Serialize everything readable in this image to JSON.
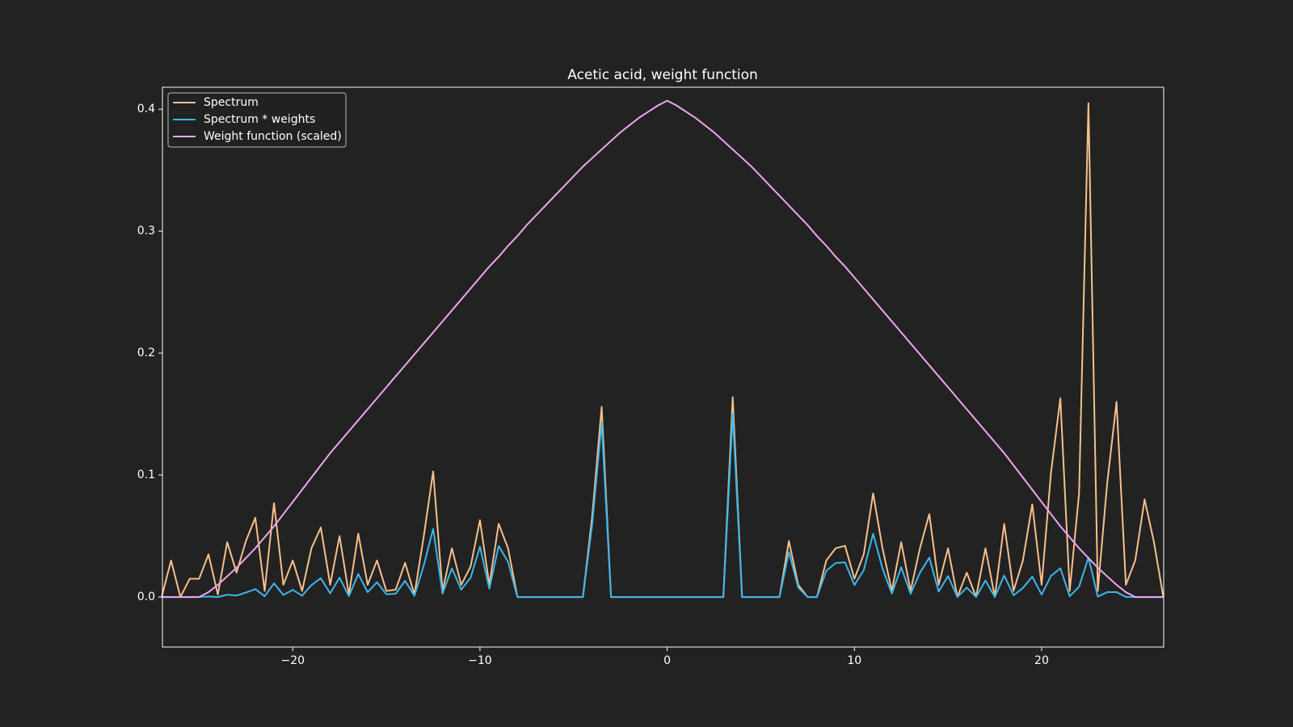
{
  "chart_data": {
    "type": "line",
    "title": "Acetic acid, weight function",
    "x": [
      -27,
      -26.5,
      -26,
      -25.5,
      -25,
      -24.5,
      -24,
      -23.5,
      -23,
      -22.5,
      -22,
      -21.5,
      -21,
      -20.5,
      -20,
      -19.5,
      -19,
      -18.5,
      -18,
      -17.5,
      -17,
      -16.5,
      -16,
      -15.5,
      -15,
      -14.5,
      -14,
      -13.5,
      -13,
      -12.5,
      -12,
      -11.5,
      -11,
      -10.5,
      -10,
      -9.5,
      -9,
      -8.5,
      -8,
      -7.5,
      -7,
      -6.5,
      -6,
      -5.5,
      -5,
      -4.5,
      -4,
      -3.5,
      -3,
      -2.5,
      -2,
      -1.5,
      -1,
      -0.5,
      0,
      0.5,
      1,
      1.5,
      2,
      2.5,
      3,
      3.5,
      4,
      4.5,
      5,
      5.5,
      6,
      6.5,
      7,
      7.5,
      8,
      8.5,
      9,
      9.5,
      10,
      10.5,
      11,
      11.5,
      12,
      12.5,
      13,
      13.5,
      14,
      14.5,
      15,
      15.5,
      16,
      16.5,
      17,
      17.5,
      18,
      18.5,
      19,
      19.5,
      20,
      20.5,
      21,
      21.5,
      22,
      22.5,
      23,
      23.5,
      24,
      24.5,
      25,
      25.5,
      26,
      26.5
    ],
    "series": [
      {
        "name": "Spectrum",
        "color": "#f7c08c",
        "values": [
          0,
          0.03,
          0,
          0.015,
          0.015,
          0.035,
          0.002,
          0.045,
          0.02,
          0.046,
          0.065,
          0.005,
          0.077,
          0.01,
          0.03,
          0.005,
          0.04,
          0.057,
          0.01,
          0.05,
          0.002,
          0.052,
          0.01,
          0.03,
          0.005,
          0.006,
          0.028,
          0.002,
          0.05,
          0.103,
          0.005,
          0.04,
          0.01,
          0.025,
          0.063,
          0.01,
          0.06,
          0.04,
          0,
          0,
          0,
          0,
          0,
          0,
          0,
          0,
          0.067,
          0.156,
          0,
          0,
          0,
          0,
          0,
          0,
          0,
          0,
          0,
          0,
          0,
          0,
          0,
          0.164,
          0,
          0,
          0,
          0,
          0,
          0.046,
          0.01,
          0,
          0,
          0.03,
          0.04,
          0.042,
          0.015,
          0.035,
          0.085,
          0.04,
          0.005,
          0.045,
          0.005,
          0.04,
          0.068,
          0.01,
          0.04,
          0,
          0.02,
          0,
          0.04,
          0,
          0.06,
          0.005,
          0.03,
          0.076,
          0.01,
          0.102,
          0.163,
          0.005,
          0.085,
          0.405,
          0.005,
          0.093,
          0.16,
          0.01,
          0.03,
          0.08,
          0.045,
          0
        ]
      },
      {
        "name": "Spectrum * weights",
        "color": "#3cb6ec",
        "values": [
          0,
          0,
          0,
          0,
          0,
          0.0004,
          0,
          0.0019,
          0.0012,
          0.0037,
          0.0065,
          0.0006,
          0.0112,
          0.0017,
          0.0059,
          0.0011,
          0.0098,
          0.0154,
          0.003,
          0.0159,
          0.0007,
          0.0189,
          0.0039,
          0.0122,
          0.0022,
          0.0027,
          0.0133,
          0.001,
          0.026,
          0.0559,
          0.0028,
          0.0235,
          0.0061,
          0.0158,
          0.0413,
          0.0068,
          0.0419,
          0.0288,
          0,
          0,
          0,
          0,
          0,
          0,
          0,
          0,
          0.0603,
          0.1431,
          0,
          0,
          0,
          0,
          0,
          0,
          0,
          0,
          0,
          0,
          0,
          0,
          0,
          0.1505,
          0,
          0,
          0,
          0,
          0,
          0.0369,
          0.0078,
          0,
          0,
          0.0216,
          0.0279,
          0.0285,
          0.0098,
          0.0221,
          0.0519,
          0.0235,
          0.0028,
          0.0244,
          0.0026,
          0.0199,
          0.0323,
          0.0045,
          0.0172,
          0,
          0.0077,
          0,
          0.0136,
          0,
          0.0177,
          0.0014,
          0.0074,
          0.0167,
          0.002,
          0.0173,
          0.0236,
          0.0006,
          0.0085,
          0.0324,
          0.0003,
          0.004,
          0.004,
          0.0001,
          0,
          0,
          0,
          0
        ]
      },
      {
        "name": "Weight function (scaled)",
        "color": "#eea6ee",
        "values": [
          0,
          0,
          0,
          0,
          0,
          0.004,
          0.01,
          0.017,
          0.024,
          0.032,
          0.04,
          0.049,
          0.058,
          0.068,
          0.078,
          0.088,
          0.098,
          0.108,
          0.118,
          0.127,
          0.136,
          0.145,
          0.154,
          0.163,
          0.172,
          0.181,
          0.19,
          0.199,
          0.208,
          0.217,
          0.226,
          0.235,
          0.244,
          0.253,
          0.262,
          0.271,
          0.279,
          0.288,
          0.296,
          0.305,
          0.313,
          0.321,
          0.329,
          0.337,
          0.345,
          0.353,
          0.36,
          0.367,
          0.374,
          0.381,
          0.387,
          0.393,
          0.398,
          0.403,
          0.407,
          0.403,
          0.398,
          0.393,
          0.387,
          0.381,
          0.374,
          0.367,
          0.36,
          0.353,
          0.345,
          0.337,
          0.329,
          0.321,
          0.313,
          0.305,
          0.296,
          0.288,
          0.279,
          0.271,
          0.262,
          0.253,
          0.244,
          0.235,
          0.226,
          0.217,
          0.208,
          0.199,
          0.19,
          0.181,
          0.172,
          0.163,
          0.154,
          0.145,
          0.136,
          0.127,
          0.118,
          0.108,
          0.098,
          0.088,
          0.078,
          0.068,
          0.058,
          0.049,
          0.04,
          0.032,
          0.024,
          0.017,
          0.01,
          0.004,
          0,
          0,
          0,
          0
        ]
      }
    ],
    "xlim": [
      -26.96,
      26.52
    ],
    "xticks": [
      {
        "value": -20,
        "label": "−20"
      },
      {
        "value": -10,
        "label": "−10"
      },
      0,
      10,
      20
    ],
    "ylim": [
      -0.041,
      0.418
    ],
    "yticks": [
      {
        "value": 0,
        "label": "0.0"
      },
      0.1,
      0.2,
      0.3,
      0.4
    ],
    "legend": "upper left"
  }
}
